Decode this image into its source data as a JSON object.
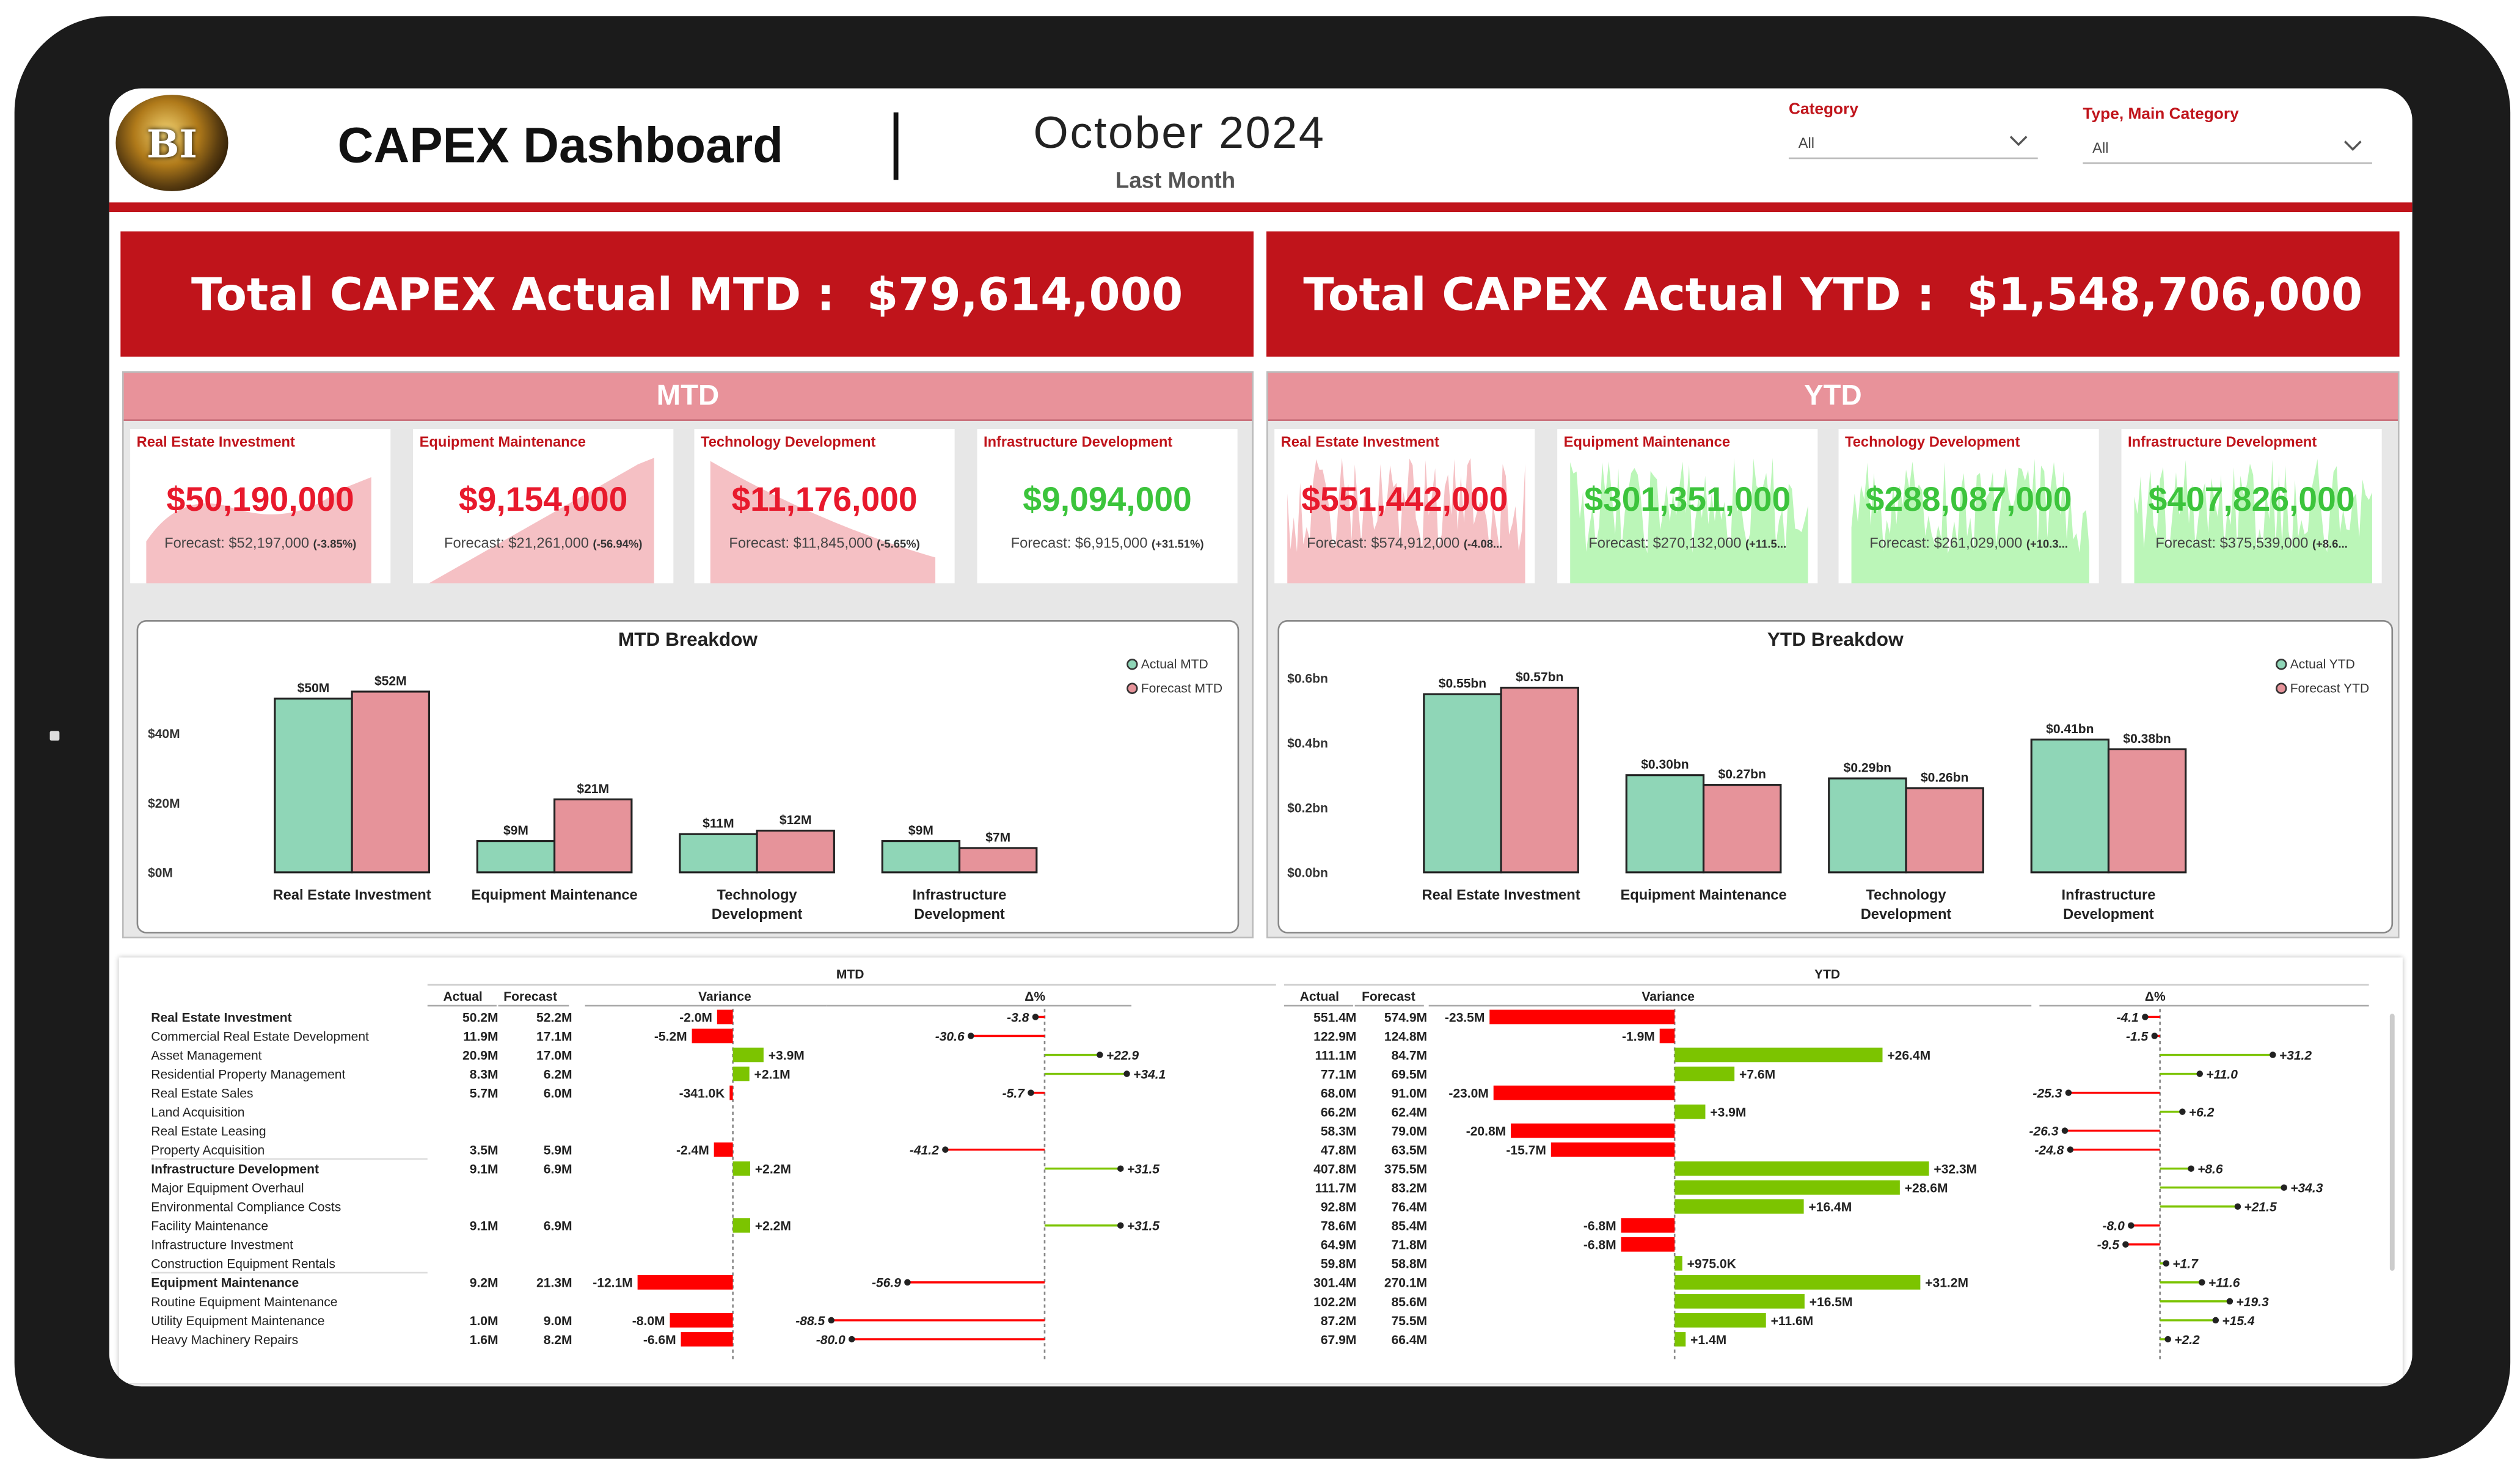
{
  "header": {
    "logo_text": "BI",
    "title": "CAPEX Dashboard",
    "period": "October 2024",
    "period_sub": "Last Month",
    "filters": [
      {
        "label": "Category",
        "value": "All"
      },
      {
        "label": "Type, Main Category",
        "value": "All"
      }
    ]
  },
  "kpi": {
    "mtd": {
      "label": "Total CAPEX Actual MTD :",
      "value": "$79,614,000"
    },
    "ytd": {
      "label": "Total CAPEX Actual YTD :",
      "value": "$1,548,706,000"
    }
  },
  "colors": {
    "brand_red": "#c0141b",
    "actual": "#8fd6b7",
    "forecast": "#e6939a",
    "positive": "#7cc400",
    "negative": "#ff0000",
    "val_red": "#e8192c",
    "val_green": "#3cc43c"
  },
  "mtd_panel": {
    "title": "MTD",
    "cards": [
      {
        "label": "Real Estate Investment",
        "value": "$50,190,000",
        "forecast": "Forecast: $52,197,000",
        "delta": "(-3.85%)",
        "status": "negative"
      },
      {
        "label": "Equipment Maintenance",
        "value": "$9,154,000",
        "forecast": "Forecast: $21,261,000",
        "delta": "(-56.94%)",
        "status": "negative"
      },
      {
        "label": "Technology Development",
        "value": "$11,176,000",
        "forecast": "Forecast: $11,845,000",
        "delta": "(-5.65%)",
        "status": "negative"
      },
      {
        "label": "Infrastructure Development",
        "value": "$9,094,000",
        "forecast": "Forecast: $6,915,000",
        "delta": "(+31.51%)",
        "status": "positive"
      }
    ]
  },
  "ytd_panel": {
    "title": "YTD",
    "cards": [
      {
        "label": "Real Estate Investment",
        "value": "$551,442,000",
        "forecast": "Forecast: $574,912,000",
        "delta": "(-4.08...",
        "status": "negative"
      },
      {
        "label": "Equipment Maintenance",
        "value": "$301,351,000",
        "forecast": "Forecast: $270,132,000",
        "delta": "(+11.5...",
        "status": "positive"
      },
      {
        "label": "Technology Development",
        "value": "$288,087,000",
        "forecast": "Forecast: $261,029,000",
        "delta": "(+10.3...",
        "status": "positive"
      },
      {
        "label": "Infrastructure Development",
        "value": "$407,826,000",
        "forecast": "Forecast: $375,539,000",
        "delta": "(+8.6...",
        "status": "positive"
      }
    ]
  },
  "chart_data": [
    {
      "type": "bar",
      "title": "MTD Breakdow",
      "categories": [
        "Real Estate Investment",
        "Equipment Maintenance",
        "Technology Development",
        "Infrastructure Development"
      ],
      "series": [
        {
          "name": "Actual MTD",
          "values": [
            50,
            9,
            11,
            9
          ],
          "labels": [
            "$50M",
            "$9M",
            "$11M",
            "$9M"
          ]
        },
        {
          "name": "Forecast MTD",
          "values": [
            52,
            21,
            12,
            7
          ],
          "labels": [
            "$52M",
            "$21M",
            "$12M",
            "$7M"
          ]
        }
      ],
      "yticks": [
        "$0M",
        "$20M",
        "$40M"
      ],
      "ytick_values": [
        0,
        20,
        40
      ],
      "ylim": [
        0,
        55
      ],
      "legend": "top-right"
    },
    {
      "type": "bar",
      "title": "YTD Breakdow",
      "categories": [
        "Real Estate Investment",
        "Equipment Maintenance",
        "Technology Development",
        "Infrastructure Development"
      ],
      "series": [
        {
          "name": "Actual YTD",
          "values": [
            0.55,
            0.3,
            0.29,
            0.41
          ],
          "labels": [
            "$0.55bn",
            "$0.30bn",
            "$0.29bn",
            "$0.41bn"
          ]
        },
        {
          "name": "Forecast YTD",
          "values": [
            0.57,
            0.27,
            0.26,
            0.38
          ],
          "labels": [
            "$0.57bn",
            "$0.27bn",
            "$0.26bn",
            "$0.38bn"
          ]
        }
      ],
      "yticks": [
        "$0.0bn",
        "$0.2bn",
        "$0.4bn",
        "$0.6bn"
      ],
      "ytick_values": [
        0,
        0.2,
        0.4,
        0.6
      ],
      "ylim": [
        0,
        0.6
      ],
      "legend": "top-right"
    }
  ],
  "variance_table": {
    "mtd_title": "MTD",
    "ytd_title": "YTD",
    "col_headers": {
      "actual": "Actual",
      "forecast": "Forecast",
      "variance": "Variance",
      "delta": "Δ%"
    },
    "rows": [
      {
        "name": "Real Estate Investment",
        "bold": true,
        "mtd": {
          "actual": "50.2M",
          "forecast": "52.2M",
          "var": -2.0,
          "var_label": "-2.0M",
          "pct": -3.8,
          "pct_label": "-3.8"
        },
        "ytd": {
          "actual": "551.4M",
          "forecast": "574.9M",
          "var": -23.5,
          "var_label": "-23.5M",
          "pct": -4.1,
          "pct_label": "-4.1"
        }
      },
      {
        "name": "Commercial Real Estate Development",
        "bold": false,
        "mtd": {
          "actual": "11.9M",
          "forecast": "17.1M",
          "var": -5.2,
          "var_label": "-5.2M",
          "pct": -30.6,
          "pct_label": "-30.6"
        },
        "ytd": {
          "actual": "122.9M",
          "forecast": "124.8M",
          "var": -1.9,
          "var_label": "-1.9M",
          "pct": -1.5,
          "pct_label": "-1.5"
        }
      },
      {
        "name": "Asset Management",
        "bold": false,
        "mtd": {
          "actual": "20.9M",
          "forecast": "17.0M",
          "var": 3.9,
          "var_label": "+3.9M",
          "pct": 22.9,
          "pct_label": "+22.9"
        },
        "ytd": {
          "actual": "111.1M",
          "forecast": "84.7M",
          "var": 26.4,
          "var_label": "+26.4M",
          "pct": 31.2,
          "pct_label": "+31.2"
        }
      },
      {
        "name": "Residential Property Management",
        "bold": false,
        "mtd": {
          "actual": "8.3M",
          "forecast": "6.2M",
          "var": 2.1,
          "var_label": "+2.1M",
          "pct": 34.1,
          "pct_label": "+34.1"
        },
        "ytd": {
          "actual": "77.1M",
          "forecast": "69.5M",
          "var": 7.6,
          "var_label": "+7.6M",
          "pct": 11.0,
          "pct_label": "+11.0"
        }
      },
      {
        "name": "Real Estate Sales",
        "bold": false,
        "mtd": {
          "actual": "5.7M",
          "forecast": "6.0M",
          "var": -0.341,
          "var_label": "-341.0K",
          "pct": -5.7,
          "pct_label": "-5.7"
        },
        "ytd": {
          "actual": "68.0M",
          "forecast": "91.0M",
          "var": -23.0,
          "var_label": "-23.0M",
          "pct": -25.3,
          "pct_label": "-25.3"
        }
      },
      {
        "name": "Land Acquisition",
        "bold": false,
        "mtd": null,
        "ytd": {
          "actual": "66.2M",
          "forecast": "62.4M",
          "var": 3.9,
          "var_label": "+3.9M",
          "pct": 6.2,
          "pct_label": "+6.2"
        }
      },
      {
        "name": "Real Estate Leasing",
        "bold": false,
        "mtd": null,
        "ytd": {
          "actual": "58.3M",
          "forecast": "79.0M",
          "var": -20.8,
          "var_label": "-20.8M",
          "pct": -26.3,
          "pct_label": "-26.3"
        }
      },
      {
        "name": "Property Acquisition",
        "bold": false,
        "mtd": {
          "actual": "3.5M",
          "forecast": "5.9M",
          "var": -2.4,
          "var_label": "-2.4M",
          "pct": -41.2,
          "pct_label": "-41.2"
        },
        "ytd": {
          "actual": "47.8M",
          "forecast": "63.5M",
          "var": -15.7,
          "var_label": "-15.7M",
          "pct": -24.8,
          "pct_label": "-24.8"
        }
      },
      {
        "name": "Infrastructure Development",
        "bold": true,
        "mtd": {
          "actual": "9.1M",
          "forecast": "6.9M",
          "var": 2.2,
          "var_label": "+2.2M",
          "pct": 31.5,
          "pct_label": "+31.5"
        },
        "ytd": {
          "actual": "407.8M",
          "forecast": "375.5M",
          "var": 32.3,
          "var_label": "+32.3M",
          "pct": 8.6,
          "pct_label": "+8.6"
        }
      },
      {
        "name": "Major Equipment Overhaul",
        "bold": false,
        "mtd": null,
        "ytd": {
          "actual": "111.7M",
          "forecast": "83.2M",
          "var": 28.6,
          "var_label": "+28.6M",
          "pct": 34.3,
          "pct_label": "+34.3"
        }
      },
      {
        "name": "Environmental Compliance Costs",
        "bold": false,
        "mtd": null,
        "ytd": {
          "actual": "92.8M",
          "forecast": "76.4M",
          "var": 16.4,
          "var_label": "+16.4M",
          "pct": 21.5,
          "pct_label": "+21.5"
        }
      },
      {
        "name": "Facility Maintenance",
        "bold": false,
        "mtd": {
          "actual": "9.1M",
          "forecast": "6.9M",
          "var": 2.2,
          "var_label": "+2.2M",
          "pct": 31.5,
          "pct_label": "+31.5"
        },
        "ytd": {
          "actual": "78.6M",
          "forecast": "85.4M",
          "var": -6.8,
          "var_label": "-6.8M",
          "pct": -8.0,
          "pct_label": "-8.0"
        }
      },
      {
        "name": "Infrastructure Investment",
        "bold": false,
        "mtd": null,
        "ytd": {
          "actual": "64.9M",
          "forecast": "71.8M",
          "var": -6.8,
          "var_label": "-6.8M",
          "pct": -9.5,
          "pct_label": "-9.5"
        }
      },
      {
        "name": "Construction Equipment Rentals",
        "bold": false,
        "mtd": null,
        "ytd": {
          "actual": "59.8M",
          "forecast": "58.8M",
          "var": 0.975,
          "var_label": "+975.0K",
          "pct": 1.7,
          "pct_label": "+1.7"
        }
      },
      {
        "name": "Equipment Maintenance",
        "bold": true,
        "mtd": {
          "actual": "9.2M",
          "forecast": "21.3M",
          "var": -12.1,
          "var_label": "-12.1M",
          "pct": -56.9,
          "pct_label": "-56.9"
        },
        "ytd": {
          "actual": "301.4M",
          "forecast": "270.1M",
          "var": 31.2,
          "var_label": "+31.2M",
          "pct": 11.6,
          "pct_label": "+11.6"
        }
      },
      {
        "name": "Routine Equipment Maintenance",
        "bold": false,
        "mtd": null,
        "ytd": {
          "actual": "102.2M",
          "forecast": "85.6M",
          "var": 16.5,
          "var_label": "+16.5M",
          "pct": 19.3,
          "pct_label": "+19.3"
        }
      },
      {
        "name": "Utility Equipment Maintenance",
        "bold": false,
        "mtd": {
          "actual": "1.0M",
          "forecast": "9.0M",
          "var": -8.0,
          "var_label": "-8.0M",
          "pct": -88.5,
          "pct_label": "-88.5"
        },
        "ytd": {
          "actual": "87.2M",
          "forecast": "75.5M",
          "var": 11.6,
          "var_label": "+11.6M",
          "pct": 15.4,
          "pct_label": "+15.4"
        }
      },
      {
        "name": "Heavy Machinery Repairs",
        "bold": false,
        "mtd": {
          "actual": "1.6M",
          "forecast": "8.2M",
          "var": -6.6,
          "var_label": "-6.6M",
          "pct": -80.0,
          "pct_label": "-80.0"
        },
        "ytd": {
          "actual": "67.9M",
          "forecast": "66.4M",
          "var": 1.4,
          "var_label": "+1.4M",
          "pct": 2.2,
          "pct_label": "+2.2"
        }
      }
    ]
  }
}
